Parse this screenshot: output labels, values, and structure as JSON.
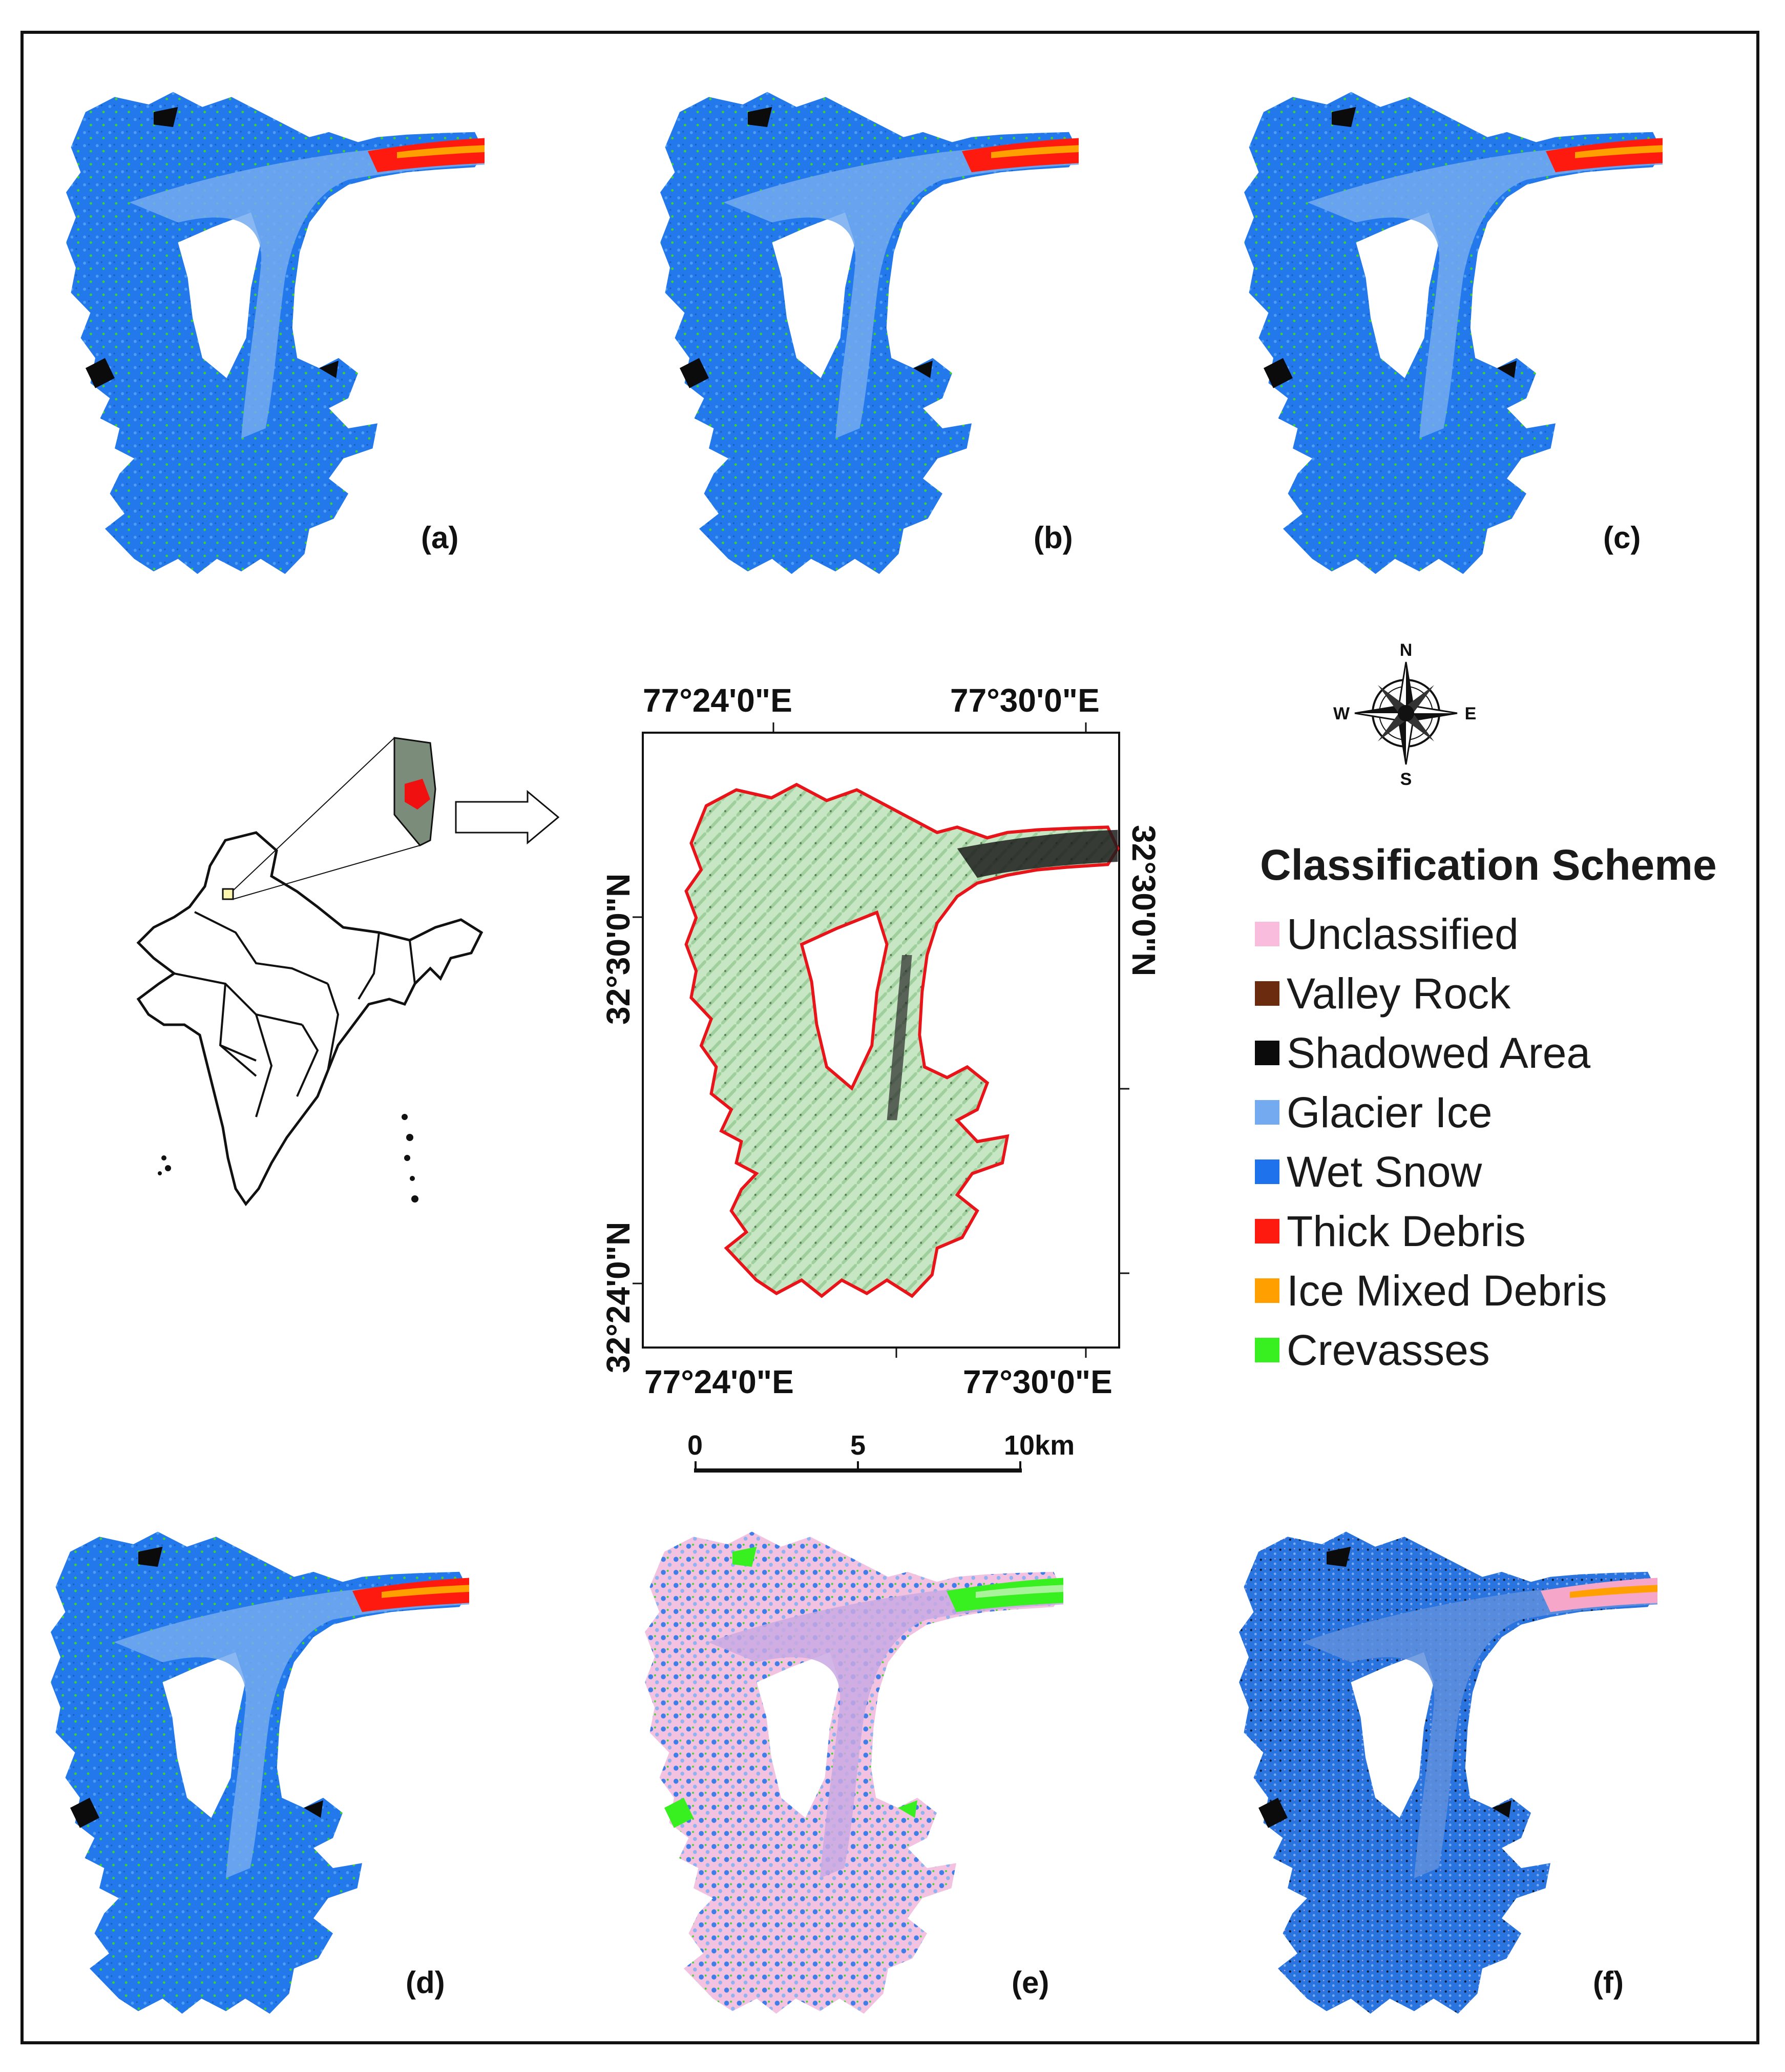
{
  "panels": [
    {
      "label": "(a)",
      "style": "a"
    },
    {
      "label": "(b)",
      "style": "b"
    },
    {
      "label": "(c)",
      "style": "c"
    },
    {
      "label": "(d)",
      "style": "d"
    },
    {
      "label": "(e)",
      "style": "e"
    },
    {
      "label": "(f)",
      "style": "f"
    }
  ],
  "main_map": {
    "top_lon_left": "77°24'0\"E",
    "top_lon_right": "77°30'0\"E",
    "bottom_lon_left": "77°24'0\"E",
    "bottom_lon_right": "77°30'0\"E",
    "left_lat_top": "32°30'0\"N",
    "left_lat_bottom": "32°24'0\"N",
    "right_lat_top": "32°30'0\"N"
  },
  "compass": {
    "n": "N",
    "s": "S",
    "e": "E",
    "w": "W"
  },
  "scale_bar": {
    "ticks": [
      "0",
      "5",
      "10km"
    ]
  },
  "legend": {
    "title": "Classification Scheme",
    "items": [
      {
        "label": "Unclassified",
        "color": "#f9bcdc"
      },
      {
        "label": "Valley Rock",
        "color": "#6b2b0e"
      },
      {
        "label": "Shadowed Area",
        "color": "#0b0b0b"
      },
      {
        "label": "Glacier Ice",
        "color": "#74aaf0"
      },
      {
        "label": "Wet Snow",
        "color": "#1e73ec"
      },
      {
        "label": "Thick Debris",
        "color": "#ff1a10"
      },
      {
        "label": "Ice Mixed Debris",
        "color": "#ffa000"
      },
      {
        "label": "Crevasses",
        "color": "#38ef20"
      }
    ]
  }
}
